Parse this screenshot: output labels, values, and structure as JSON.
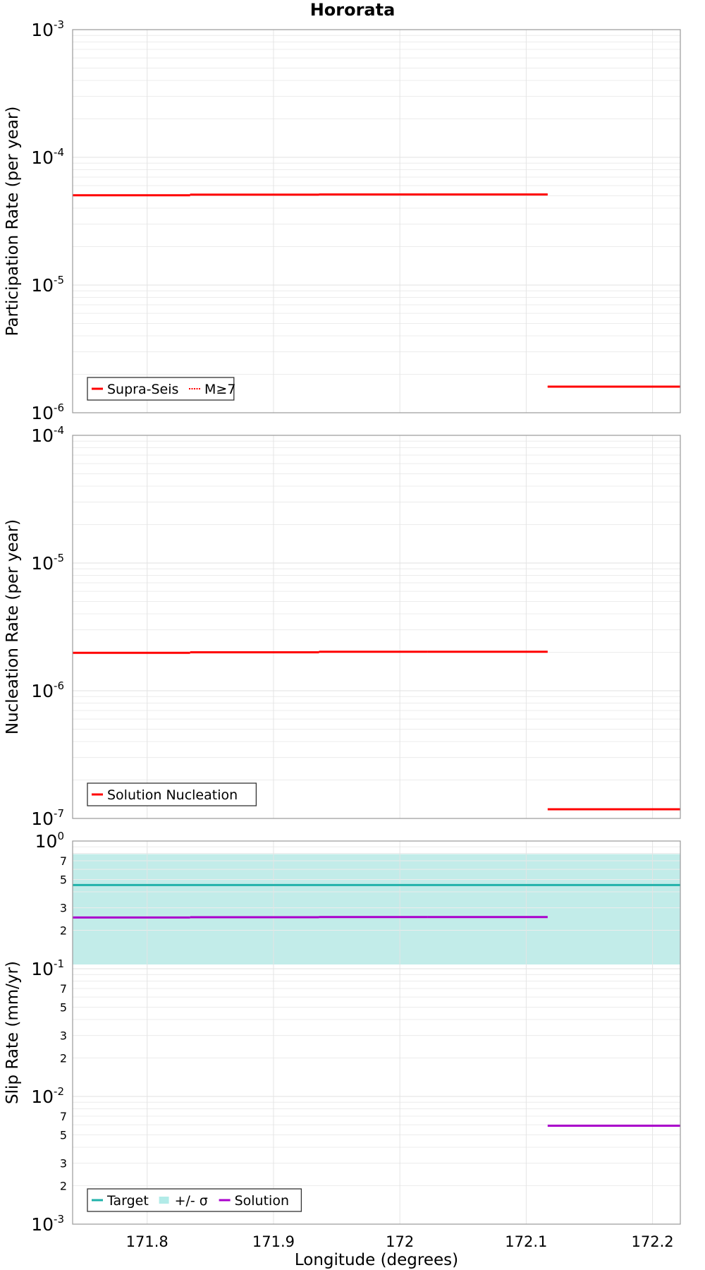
{
  "title": "Hororata",
  "chart_data": [
    {
      "type": "line",
      "ylabel": "Participation Rate (per year)",
      "yscale": "log",
      "ylim": [
        1e-06,
        0.001
      ],
      "xlim": [
        171.741,
        172.222
      ],
      "legend": {
        "placement": "bottom-left",
        "entries": [
          {
            "name": "Supra-Seis",
            "color": "#ff0000",
            "style": "solid"
          },
          {
            "name": "M≥7",
            "color": "#ff0000",
            "style": "dotted"
          }
        ]
      },
      "series": [
        {
          "name": "Supra-Seis",
          "color": "#ff0000",
          "style": "solid",
          "segments": [
            {
              "x": [
                171.741,
                171.834
              ],
              "y": 5.05e-05
            },
            {
              "x": [
                171.834,
                171.936
              ],
              "y": 5.1e-05
            },
            {
              "x": [
                171.936,
                172.022
              ],
              "y": 5.12e-05
            },
            {
              "x": [
                172.022,
                172.117
              ],
              "y": 5.12e-05
            },
            {
              "x": [
                172.117,
                172.222
              ],
              "y": 1.6e-06
            }
          ]
        },
        {
          "name": "M≥7",
          "color": "#ff0000",
          "style": "dotted",
          "segments": [
            {
              "x": [
                171.741,
                171.834
              ],
              "y": 5.05e-05
            },
            {
              "x": [
                171.834,
                171.936
              ],
              "y": 5.1e-05
            },
            {
              "x": [
                171.936,
                172.022
              ],
              "y": 5.12e-05
            },
            {
              "x": [
                172.022,
                172.117
              ],
              "y": 5.12e-05
            },
            {
              "x": [
                172.117,
                172.222
              ],
              "y": 1.6e-06
            }
          ]
        }
      ],
      "yticks": [
        {
          "value": 0.001,
          "base": "10",
          "exp": "-3"
        },
        {
          "value": 0.0001,
          "base": "10",
          "exp": "-4"
        },
        {
          "value": 1e-05,
          "base": "10",
          "exp": "-5"
        },
        {
          "value": 1e-06,
          "base": "10",
          "exp": "-6"
        }
      ]
    },
    {
      "type": "line",
      "ylabel": "Nucleation Rate (per year)",
      "yscale": "log",
      "ylim": [
        1e-07,
        0.0001
      ],
      "xlim": [
        171.741,
        172.222
      ],
      "legend": {
        "placement": "bottom-left",
        "entries": [
          {
            "name": "Solution Nucleation",
            "color": "#ff0000",
            "style": "solid"
          }
        ]
      },
      "series": [
        {
          "name": "Solution Nucleation",
          "color": "#ff0000",
          "style": "solid",
          "segments": [
            {
              "x": [
                171.741,
                171.834
              ],
              "y": 1.98e-06
            },
            {
              "x": [
                171.834,
                171.936
              ],
              "y": 2e-06
            },
            {
              "x": [
                171.936,
                172.022
              ],
              "y": 2.02e-06
            },
            {
              "x": [
                172.022,
                172.117
              ],
              "y": 2.02e-06
            },
            {
              "x": [
                172.117,
                172.222
              ],
              "y": 1.18e-07
            }
          ]
        }
      ],
      "yticks": [
        {
          "value": 0.0001,
          "base": "10",
          "exp": "-4"
        },
        {
          "value": 1e-05,
          "base": "10",
          "exp": "-5"
        },
        {
          "value": 1e-06,
          "base": "10",
          "exp": "-6"
        },
        {
          "value": 1e-07,
          "base": "10",
          "exp": "-7"
        }
      ]
    },
    {
      "type": "line",
      "ylabel": "Slip Rate (mm/yr)",
      "xlabel": "Longitude (degrees)",
      "yscale": "log",
      "ylim": [
        0.001,
        1
      ],
      "xlim": [
        171.741,
        172.222
      ],
      "legend": {
        "placement": "bottom-left",
        "entries": [
          {
            "name": "Target",
            "color": "#20b2aa",
            "style": "solid"
          },
          {
            "name": "+/- σ",
            "color": "#b2ebe8",
            "style": "box"
          },
          {
            "name": "Solution",
            "color": "#aa00cc",
            "style": "solid"
          }
        ]
      },
      "band": {
        "name": "+/- σ",
        "color": "#c2ece9",
        "low": 0.108,
        "high": 0.79,
        "x": [
          171.741,
          172.222
        ]
      },
      "series": [
        {
          "name": "Target",
          "color": "#20b2aa",
          "style": "solid",
          "segments": [
            {
              "x": [
                171.741,
                172.222
              ],
              "y": 0.452
            }
          ]
        },
        {
          "name": "Solution",
          "color": "#aa00cc",
          "style": "solid",
          "segments": [
            {
              "x": [
                171.741,
                171.834
              ],
              "y": 0.252
            },
            {
              "x": [
                171.834,
                171.936
              ],
              "y": 0.253
            },
            {
              "x": [
                171.936,
                172.022
              ],
              "y": 0.254
            },
            {
              "x": [
                172.022,
                172.117
              ],
              "y": 0.254
            },
            {
              "x": [
                172.117,
                172.222
              ],
              "y": 0.0059
            }
          ]
        }
      ],
      "yticks": [
        {
          "value": 1,
          "base": "10",
          "exp": "0"
        },
        {
          "value": 0.1,
          "base": "10",
          "exp": "-1"
        },
        {
          "value": 0.01,
          "base": "10",
          "exp": "-2"
        },
        {
          "value": 0.001,
          "base": "10",
          "exp": "-3"
        }
      ],
      "minor_tick_labels": [
        "7",
        "5",
        "3",
        "2"
      ],
      "minor_tick_digits": [
        7,
        5,
        3,
        2
      ],
      "xticks": [
        {
          "value": 171.8,
          "label": "171.8"
        },
        {
          "value": 171.9,
          "label": "171.9"
        },
        {
          "value": 172.0,
          "label": "172"
        },
        {
          "value": 172.1,
          "label": "172.1"
        },
        {
          "value": 172.2,
          "label": "172.2"
        }
      ]
    }
  ]
}
